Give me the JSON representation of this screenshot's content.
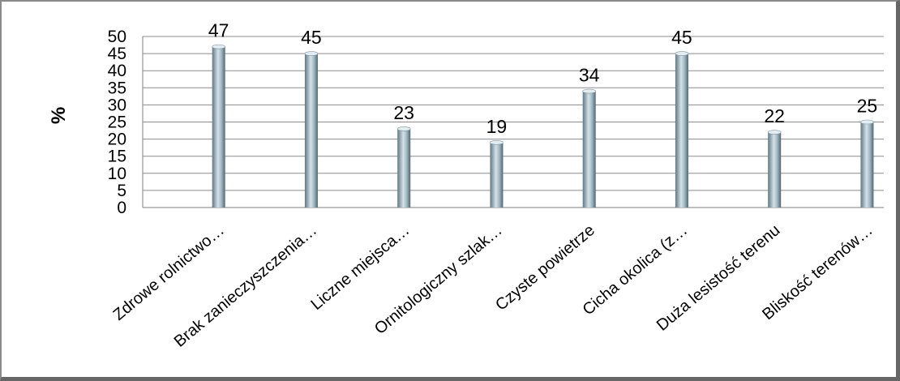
{
  "chart_data": {
    "type": "bar",
    "categories": [
      "Zdrowe rolnictwo…",
      "Brak zanieczyszczenia…",
      "Liczne miejsca…",
      "Ornitologiczny szlak…",
      "Czyste powietrze",
      "Cicha okolica (z…",
      "Duża lesistość terenu",
      "Bliskość terenów…"
    ],
    "values": [
      47,
      45,
      23,
      19,
      34,
      45,
      22,
      25
    ],
    "data_labels": [
      "47",
      "45",
      "23",
      "19",
      "34",
      "45",
      "22",
      "25"
    ],
    "ylabel": "%",
    "ylim": [
      0,
      50
    ],
    "yticks": [
      0,
      5,
      10,
      15,
      20,
      25,
      30,
      35,
      40,
      45,
      50
    ],
    "grid": true,
    "bar_style": "cylinder",
    "bar_color": "#a7bdc7",
    "legend": "none"
  }
}
